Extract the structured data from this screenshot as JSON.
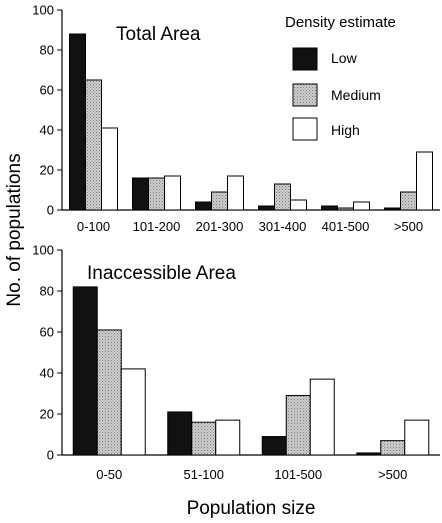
{
  "figure": {
    "ylabel": "No. of populations",
    "xlabel": "Population size"
  },
  "legend": {
    "title": "Density estimate",
    "placement": "top-right of top panel",
    "items": [
      {
        "label": "Low",
        "color": "#111111",
        "pattern": "solid"
      },
      {
        "label": "Medium",
        "color": "#c8c8c8",
        "pattern": "stipple"
      },
      {
        "label": "High",
        "color": "#ffffff",
        "pattern": "solid"
      }
    ]
  },
  "chart_data": [
    {
      "type": "bar",
      "title": "Total Area",
      "categories": [
        "0-100",
        "101-200",
        "201-300",
        "301-400",
        "401-500",
        ">500"
      ],
      "series": [
        {
          "name": "Low",
          "values": [
            88,
            16,
            4,
            2,
            2,
            1
          ]
        },
        {
          "name": "Medium",
          "values": [
            65,
            16,
            9,
            13,
            1,
            9
          ]
        },
        {
          "name": "High",
          "values": [
            41,
            17,
            17,
            5,
            4,
            29
          ]
        }
      ],
      "ylim": [
        0,
        100
      ],
      "yticks": [
        0,
        20,
        40,
        60,
        80,
        100
      ],
      "grid": false
    },
    {
      "type": "bar",
      "title": "Inaccessible Area",
      "categories": [
        "0-50",
        "51-100",
        "101-500",
        ">500"
      ],
      "series": [
        {
          "name": "Low",
          "values": [
            82,
            21,
            9,
            1
          ]
        },
        {
          "name": "Medium",
          "values": [
            61,
            16,
            29,
            7
          ]
        },
        {
          "name": "High",
          "values": [
            42,
            17,
            37,
            17
          ]
        }
      ],
      "ylim": [
        0,
        100
      ],
      "yticks": [
        0,
        20,
        40,
        60,
        80,
        100
      ],
      "grid": false
    }
  ]
}
